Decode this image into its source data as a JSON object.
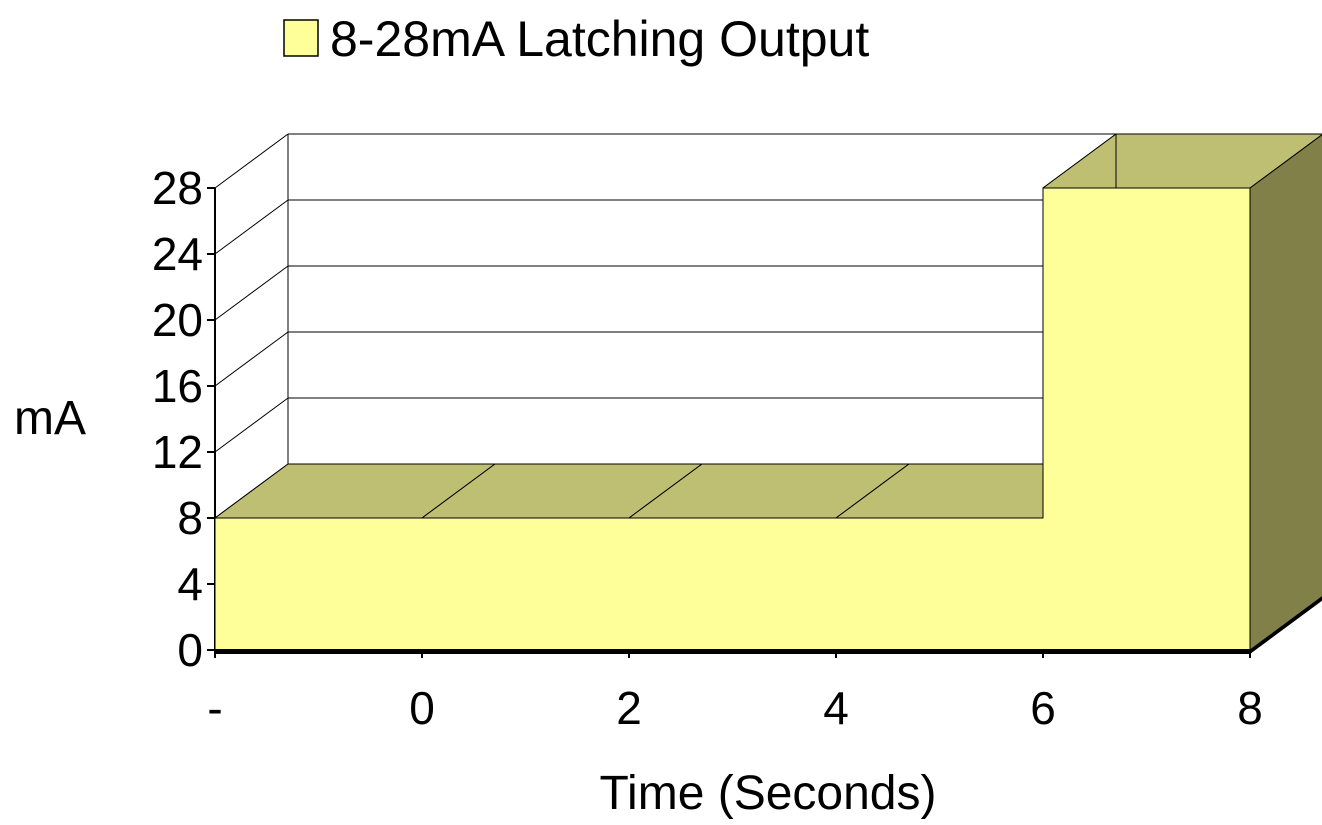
{
  "chart_data": {
    "type": "area",
    "three_d": true,
    "title": "",
    "xlabel": "Time (Seconds)",
    "ylabel": "mA",
    "categories": [
      "-",
      "0",
      "2",
      "4",
      "6",
      "8"
    ],
    "series": [
      {
        "name": "8-28mA Latching Output",
        "values": [
          8,
          8,
          8,
          8,
          28,
          28
        ]
      }
    ],
    "yticks": [
      "0",
      "4",
      "8",
      "12",
      "16",
      "20",
      "24",
      "28"
    ],
    "ylim": [
      0,
      28
    ],
    "grid": true,
    "legend": "top"
  },
  "colors": {
    "front": "#FFFF99",
    "top": "#BFBF73",
    "side": "#808048"
  }
}
